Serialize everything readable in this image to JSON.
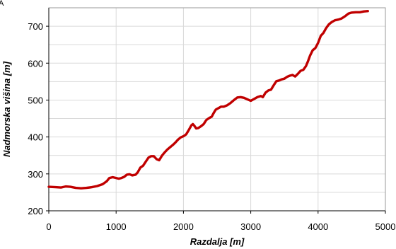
{
  "chart_data": {
    "type": "line",
    "title": "",
    "xlabel": "Razdalja [m]",
    "ylabel": "Nadmorska višina [m]",
    "xlim": [
      0,
      5000
    ],
    "ylim": [
      200,
      750
    ],
    "x_ticks": [
      0,
      1000,
      2000,
      3000,
      4000,
      5000
    ],
    "y_ticks": [
      200,
      300,
      400,
      500,
      600,
      700
    ],
    "grid": true,
    "legend": "none",
    "series": [
      {
        "color": "#c00000",
        "points": [
          [
            0,
            265
          ],
          [
            100,
            264
          ],
          [
            180,
            263
          ],
          [
            250,
            266
          ],
          [
            320,
            265
          ],
          [
            400,
            262
          ],
          [
            480,
            261
          ],
          [
            560,
            262
          ],
          [
            640,
            264
          ],
          [
            720,
            267
          ],
          [
            800,
            272
          ],
          [
            860,
            280
          ],
          [
            900,
            289
          ],
          [
            950,
            291
          ],
          [
            1000,
            289
          ],
          [
            1040,
            287
          ],
          [
            1080,
            289
          ],
          [
            1120,
            292
          ],
          [
            1160,
            298
          ],
          [
            1200,
            299
          ],
          [
            1240,
            296
          ],
          [
            1290,
            298
          ],
          [
            1320,
            304
          ],
          [
            1360,
            317
          ],
          [
            1400,
            322
          ],
          [
            1440,
            333
          ],
          [
            1480,
            344
          ],
          [
            1520,
            348
          ],
          [
            1560,
            348
          ],
          [
            1600,
            340
          ],
          [
            1640,
            337
          ],
          [
            1680,
            349
          ],
          [
            1720,
            358
          ],
          [
            1760,
            366
          ],
          [
            1800,
            372
          ],
          [
            1840,
            378
          ],
          [
            1880,
            385
          ],
          [
            1920,
            393
          ],
          [
            1960,
            399
          ],
          [
            2000,
            402
          ],
          [
            2040,
            407
          ],
          [
            2080,
            419
          ],
          [
            2120,
            432
          ],
          [
            2140,
            435
          ],
          [
            2160,
            431
          ],
          [
            2190,
            423
          ],
          [
            2220,
            424
          ],
          [
            2260,
            429
          ],
          [
            2300,
            435
          ],
          [
            2340,
            446
          ],
          [
            2380,
            451
          ],
          [
            2420,
            455
          ],
          [
            2450,
            465
          ],
          [
            2480,
            474
          ],
          [
            2520,
            478
          ],
          [
            2560,
            482
          ],
          [
            2600,
            482
          ],
          [
            2650,
            486
          ],
          [
            2700,
            492
          ],
          [
            2750,
            500
          ],
          [
            2800,
            507
          ],
          [
            2850,
            508
          ],
          [
            2900,
            506
          ],
          [
            2950,
            502
          ],
          [
            3000,
            498
          ],
          [
            3050,
            503
          ],
          [
            3100,
            508
          ],
          [
            3150,
            511
          ],
          [
            3180,
            508
          ],
          [
            3220,
            520
          ],
          [
            3260,
            526
          ],
          [
            3300,
            528
          ],
          [
            3340,
            540
          ],
          [
            3380,
            551
          ],
          [
            3420,
            553
          ],
          [
            3460,
            556
          ],
          [
            3500,
            558
          ],
          [
            3540,
            563
          ],
          [
            3580,
            566
          ],
          [
            3620,
            568
          ],
          [
            3660,
            564
          ],
          [
            3700,
            571
          ],
          [
            3740,
            579
          ],
          [
            3780,
            582
          ],
          [
            3820,
            592
          ],
          [
            3850,
            605
          ],
          [
            3880,
            620
          ],
          [
            3920,
            635
          ],
          [
            3960,
            641
          ],
          [
            4000,
            655
          ],
          [
            4040,
            674
          ],
          [
            4080,
            682
          ],
          [
            4120,
            695
          ],
          [
            4160,
            705
          ],
          [
            4200,
            711
          ],
          [
            4250,
            716
          ],
          [
            4300,
            718
          ],
          [
            4350,
            721
          ],
          [
            4400,
            727
          ],
          [
            4450,
            734
          ],
          [
            4500,
            737
          ],
          [
            4560,
            738
          ],
          [
            4620,
            738
          ],
          [
            4680,
            740
          ],
          [
            4740,
            741
          ]
        ]
      }
    ]
  },
  "corner_glyph": "A"
}
